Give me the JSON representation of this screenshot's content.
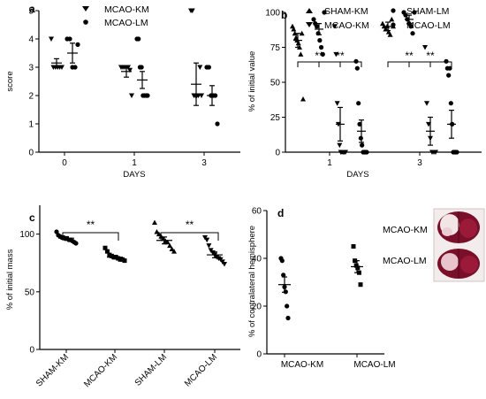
{
  "panels": {
    "a": "a",
    "b": "b",
    "c": "c",
    "d": "d"
  },
  "chart_data": [
    {
      "panel": "a",
      "type": "scatter",
      "xlabel": "DAYS",
      "ylabel": "score",
      "categories": [
        "0",
        "1",
        "3"
      ],
      "ylim": [
        0,
        5
      ],
      "yticks": [
        0,
        1,
        2,
        3,
        4,
        5
      ],
      "legend": [
        "MCAO-KM",
        "MCAO-LM"
      ],
      "series": [
        {
          "name": "MCAO-KM",
          "marker": "triangle-down",
          "groups": [
            [
              4,
              3,
              3,
              3,
              3,
              3
            ],
            [
              3,
              3,
              3,
              3,
              3,
              2.9,
              2
            ],
            [
              5,
              5,
              2,
              2,
              2,
              2,
              3,
              2
            ]
          ],
          "mean": [
            3.15,
            2.85,
            2.4
          ],
          "err": [
            0.15,
            0.2,
            0.75
          ]
        },
        {
          "name": "MCAO-LM",
          "marker": "circle",
          "groups": [
            [
              4,
              4,
              3,
              3,
              3.8
            ],
            [
              4,
              4,
              3,
              3,
              2,
              2,
              2,
              2
            ],
            [
              3,
              3,
              2,
              2,
              2,
              1
            ]
          ],
          "mean": [
            3.5,
            2.55,
            2.0
          ],
          "err": [
            0.35,
            0.3,
            0.35
          ]
        }
      ]
    },
    {
      "panel": "b",
      "type": "scatter",
      "xlabel": "DAYS",
      "ylabel": "% of initial value",
      "categories": [
        "1",
        "3"
      ],
      "ylim": [
        0,
        100
      ],
      "yticks": [
        0,
        25,
        50,
        75,
        100
      ],
      "legend": [
        "SHAM-KM",
        "SHAM-LM",
        "MCAO-KM",
        "MCAO-LM"
      ],
      "significance": "**",
      "series": [
        {
          "name": "SHAM-KM",
          "marker": "triangle-up",
          "groups": [
            [
              90,
              88,
              85,
              82,
              80,
              78,
              75,
              70,
              85,
              38
            ],
            [
              92,
              90,
              88,
              90,
              86,
              84,
              95,
              90
            ]
          ],
          "mean": [
            80,
            90
          ],
          "err": [
            5,
            3
          ]
        },
        {
          "name": "SHAM-LM",
          "marker": "circle",
          "groups": [
            [
              95,
              92,
              90,
              85,
              80,
              75,
              70,
              100
            ],
            [
              100,
              98,
              95,
              92,
              90,
              85,
              100
            ]
          ],
          "mean": [
            88,
            95
          ],
          "err": [
            4,
            3
          ]
        },
        {
          "name": "MCAO-KM",
          "marker": "triangle-down",
          "groups": [
            [
              90,
              70,
              35,
              20,
              5,
              0,
              0,
              0,
              0,
              0
            ],
            [
              75,
              35,
              20,
              10,
              0,
              0,
              0
            ]
          ],
          "mean": [
            20,
            15
          ],
          "err": [
            12,
            10
          ]
        },
        {
          "name": "MCAO-LM",
          "marker": "circle",
          "groups": [
            [
              65,
              60,
              35,
              20,
              10,
              5,
              0,
              0,
              0,
              0
            ],
            [
              65,
              60,
              55,
              60,
              35,
              20,
              0,
              0,
              0,
              0
            ]
          ],
          "mean": [
            15,
            20
          ],
          "err": [
            8,
            10
          ]
        }
      ]
    },
    {
      "panel": "c",
      "type": "scatter",
      "ylabel": "% of initial mass",
      "categories": [
        "SHAM-KM",
        "MCAO-KM",
        "SHAM-LM",
        "MCAO-LM"
      ],
      "ylim": [
        0,
        125
      ],
      "yticks": [
        0,
        50,
        100
      ],
      "significance": "**",
      "series": [
        {
          "name": "SHAM-KM",
          "marker": "circle",
          "values": [
            102,
            99,
            98,
            97,
            97,
            96,
            96,
            95,
            95,
            94,
            93,
            92
          ],
          "mean": 96.5,
          "err": 1.3
        },
        {
          "name": "MCAO-KM",
          "marker": "square",
          "values": [
            88,
            85,
            82,
            81,
            80,
            80,
            79,
            78,
            78,
            77
          ],
          "mean": 80,
          "err": 1.5
        },
        {
          "name": "SHAM-LM",
          "marker": "triangle-up",
          "values": [
            110,
            102,
            100,
            98,
            96,
            94,
            93,
            90,
            87,
            85
          ],
          "mean": 94.5,
          "err": 3
        },
        {
          "name": "MCAO-LM",
          "marker": "triangle-down",
          "values": [
            97,
            95,
            90,
            86,
            84,
            82,
            80,
            79,
            78,
            76,
            74
          ],
          "mean": 82,
          "err": 2.5
        }
      ]
    },
    {
      "panel": "d",
      "type": "scatter",
      "ylabel": "% of contralateral hemisphere",
      "categories": [
        "MCAO-KM",
        "MCAO-LM"
      ],
      "ylim": [
        0,
        60
      ],
      "yticks": [
        0,
        20,
        40,
        60
      ],
      "image_labels": [
        "MCAO-KM",
        "MCAO-LM"
      ],
      "series": [
        {
          "name": "MCAO-KM",
          "marker": "circle",
          "values": [
            40,
            39,
            33,
            28,
            26,
            20,
            15
          ],
          "mean": 29,
          "err": 3.2
        },
        {
          "name": "MCAO-LM",
          "marker": "square",
          "values": [
            45,
            39,
            37,
            36,
            34,
            29
          ],
          "mean": 36.5,
          "err": 2.5
        }
      ]
    }
  ]
}
